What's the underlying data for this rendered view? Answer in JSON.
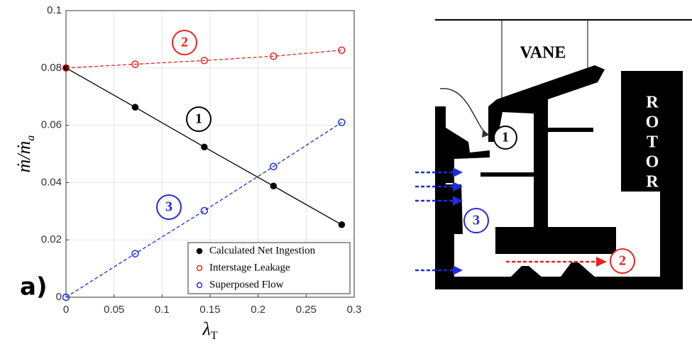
{
  "chart_data": {
    "type": "line",
    "panel_label": "a)",
    "xlabel": "λ",
    "xlabel_sub": "T",
    "ylabel": "ṁ/ṁ",
    "ylabel_sub": "a",
    "x": [
      0,
      0.072,
      0.144,
      0.216,
      0.287
    ],
    "series": [
      {
        "name": "Calculated Net Ingestion",
        "color": "#000000",
        "dashed": false,
        "filled": true,
        "values": [
          0.08,
          0.0663,
          0.0524,
          0.0388,
          0.0253
        ]
      },
      {
        "name": "Interstage Leakage",
        "color": "#e8231f",
        "dashed": true,
        "filled": false,
        "values": [
          0.08,
          0.0813,
          0.0826,
          0.0841,
          0.0862
        ]
      },
      {
        "name": "Superposed Flow",
        "color": "#1f2be0",
        "dashed": true,
        "filled": false,
        "values": [
          0,
          0.0152,
          0.0302,
          0.0456,
          0.061
        ]
      }
    ],
    "annotations": [
      {
        "text": "2",
        "color": "#e8231f"
      },
      {
        "text": "1",
        "color": "#000000"
      },
      {
        "text": "3",
        "color": "#1f2be0"
      }
    ],
    "xlim": [
      0,
      0.3
    ],
    "xticks": [
      0,
      0.05,
      0.1,
      0.15,
      0.2,
      0.25,
      0.3
    ],
    "ylim": [
      0,
      0.1
    ],
    "yticks": [
      0,
      0.02,
      0.04,
      0.06,
      0.08,
      0.1
    ],
    "grid": true,
    "legend": "lower right"
  },
  "diagram": {
    "vane": "VANE",
    "rotor": [
      "R",
      "O",
      "T",
      "O",
      "R"
    ],
    "labels": [
      "1",
      "2",
      "3"
    ]
  }
}
